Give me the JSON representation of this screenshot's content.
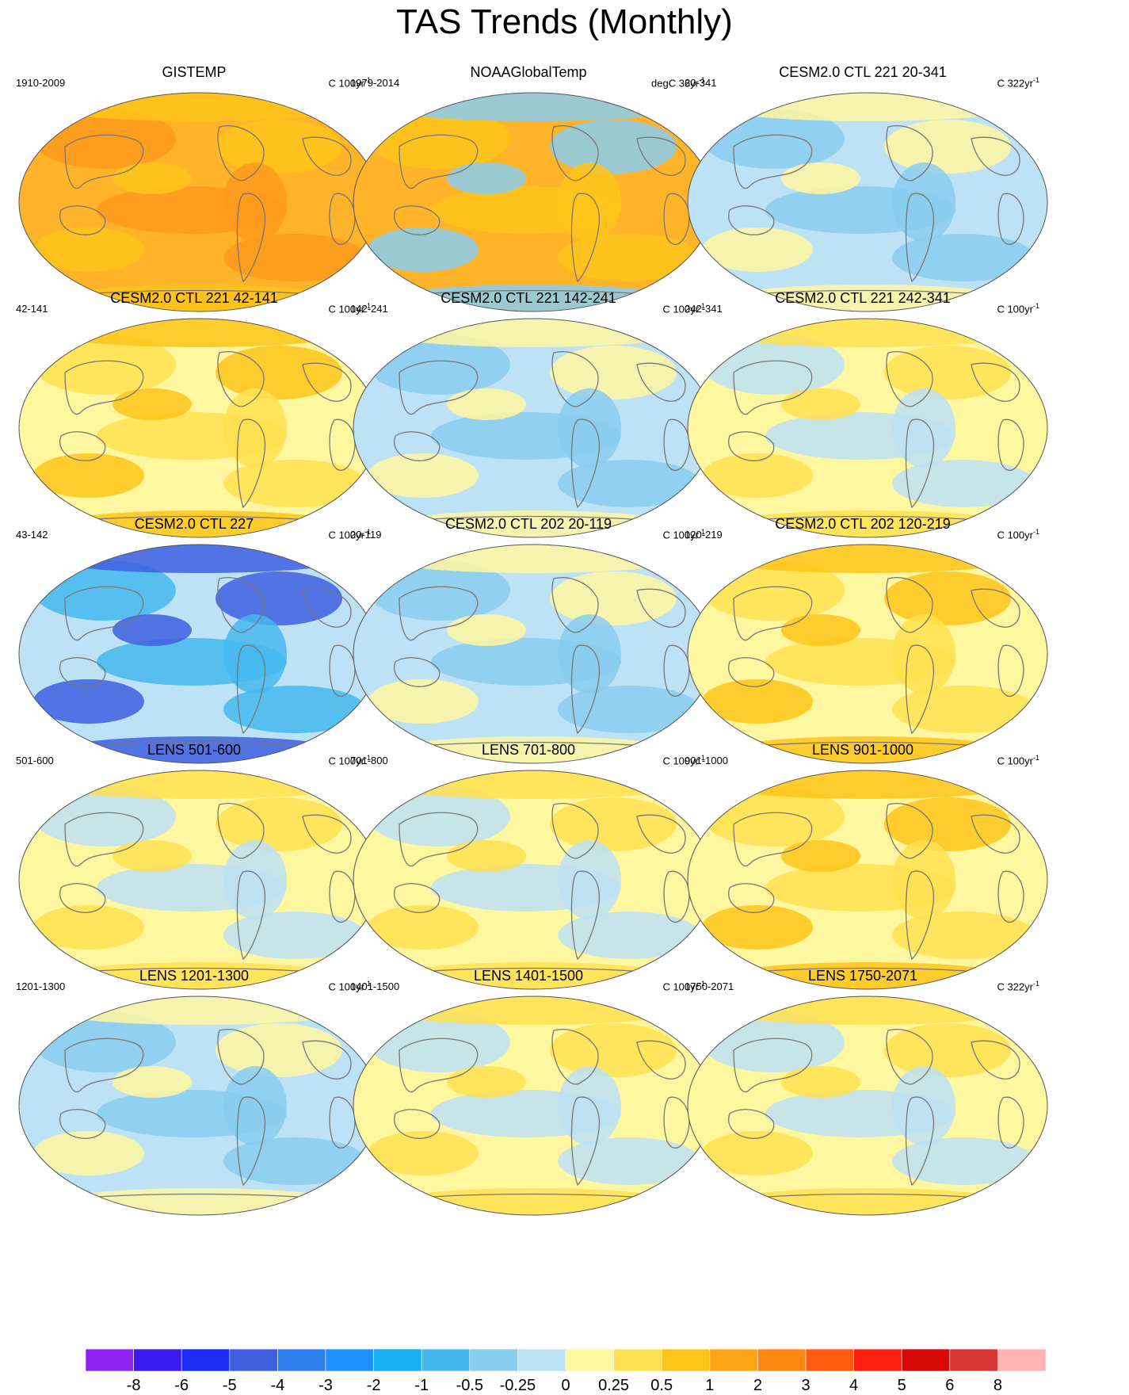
{
  "title": "TAS Trends (Monthly)",
  "panels": [
    {
      "title": "GISTEMP",
      "period": "1910-2009",
      "units": "C 100yr",
      "units_sup": "-1",
      "palette": "warm"
    },
    {
      "title": "NOAAGlobalTemp",
      "period": "1979-2014",
      "units": "degC 36yr",
      "units_sup": "-1",
      "palette": "noaa"
    },
    {
      "title": "CESM2.0 CTL 221 20-341",
      "period": "20-341",
      "units": "C 322yr",
      "units_sup": "-1",
      "palette": "cool"
    },
    {
      "title": "CESM2.0 CTL 221 42-141",
      "period": "42-141",
      "units": "C 100yr",
      "units_sup": "-1",
      "palette": "mixed-warm"
    },
    {
      "title": "CESM2.0 CTL 221 142-241",
      "period": "142-241",
      "units": "C 100yr",
      "units_sup": "-1",
      "palette": "cool"
    },
    {
      "title": "CESM2.0 CTL 221 242-341",
      "period": "242-341",
      "units": "C 100yr",
      "units_sup": "-1",
      "palette": "mixed"
    },
    {
      "title": "CESM2.0 CTL 227",
      "period": "43-142",
      "units": "C 100yr",
      "units_sup": "-1",
      "palette": "strong-cool"
    },
    {
      "title": "CESM2.0 CTL 202 20-119",
      "period": "20-119",
      "units": "C 100yr",
      "units_sup": "-1",
      "palette": "cool"
    },
    {
      "title": "CESM2.0 CTL 202 120-219",
      "period": "120-219",
      "units": "C 100yr",
      "units_sup": "-1",
      "palette": "mixed-warm"
    },
    {
      "title": "LENS 501-600",
      "period": "501-600",
      "units": "C 100yr",
      "units_sup": "-1",
      "palette": "mixed"
    },
    {
      "title": "LENS 701-800",
      "period": "701-800",
      "units": "C 100yr",
      "units_sup": "-1",
      "palette": "mixed"
    },
    {
      "title": "LENS 901-1000",
      "period": "901-1000",
      "units": "C 100yr",
      "units_sup": "-1",
      "palette": "mixed-warm"
    },
    {
      "title": "LENS 1201-1300",
      "period": "1201-1300",
      "units": "C 100yr",
      "units_sup": "-1",
      "palette": "cool"
    },
    {
      "title": "LENS 1401-1500",
      "period": "1401-1500",
      "units": "C 100yr",
      "units_sup": "-1",
      "palette": "mixed"
    },
    {
      "title": "LENS 1750-2071",
      "period": "1750-2071",
      "units": "C 322yr",
      "units_sup": "-1",
      "palette": "mixed"
    }
  ],
  "colorbar": {
    "labels": [
      "-8",
      "-6",
      "-5",
      "-4",
      "-3",
      "-2",
      "-1",
      "-0.5",
      "-0.25",
      "0",
      "0.25",
      "0.5",
      "1",
      "2",
      "3",
      "4",
      "5",
      "6",
      "8"
    ],
    "colors": [
      "#8d23f0",
      "#3a1af0",
      "#1a2cf5",
      "#3e5fe0",
      "#2e7ef0",
      "#1e90ff",
      "#16b0f2",
      "#44b8ee",
      "#8acdee",
      "#bde2f5",
      "#fff6a0",
      "#ffe050",
      "#ffc41a",
      "#ffa515",
      "#ff8610",
      "#ff5a10",
      "#ff2010",
      "#d80808",
      "#d83535",
      "#ffb3b3"
    ]
  },
  "legend": {
    "warm": [
      "#ffb328",
      "#ff9a1c",
      "#ffc41a"
    ],
    "noaa": [
      "#ffb328",
      "#ffc41a",
      "#8acdee"
    ],
    "cool": [
      "#bde2f5",
      "#8acdee",
      "#fff6a0"
    ],
    "mixed-warm": [
      "#fff6a0",
      "#ffe050",
      "#ffc41a"
    ],
    "mixed": [
      "#fff6a0",
      "#bde2f5",
      "#ffe050"
    ],
    "strong-cool": [
      "#bde2f5",
      "#44b8ee",
      "#3e5fe0"
    ]
  }
}
